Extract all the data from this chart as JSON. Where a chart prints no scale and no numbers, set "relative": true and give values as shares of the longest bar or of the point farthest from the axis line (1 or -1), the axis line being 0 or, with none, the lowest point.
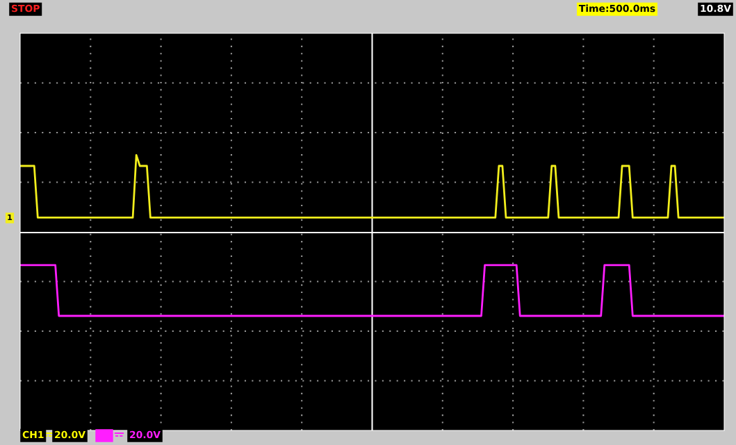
{
  "chart_data": {
    "type": "line",
    "relative": true,
    "grid": true,
    "line_style": "solid",
    "categories": [
      null,
      null,
      null,
      null,
      null,
      null,
      null,
      null,
      null,
      null,
      null,
      null,
      null,
      null,
      null,
      null,
      null,
      null,
      null,
      null,
      null,
      null,
      null,
      null,
      null,
      null,
      null,
      null,
      null,
      null,
      null,
      null,
      null,
      null,
      null,
      null,
      null,
      null,
      null,
      null,
      null,
      null,
      null,
      null,
      null,
      null,
      null,
      null,
      null,
      null,
      null,
      null,
      null,
      null,
      null,
      null,
      null,
      null,
      null,
      null,
      null,
      null,
      null,
      null,
      null,
      null,
      null,
      null,
      null,
      null,
      null,
      null,
      null,
      null,
      null,
      null,
      null,
      null,
      null,
      null,
      null,
      null,
      null,
      null,
      null,
      null,
      null,
      null,
      null,
      null,
      null,
      null,
      null,
      null,
      null,
      null,
      null,
      null,
      null,
      null,
      null,
      null,
      null,
      null,
      null,
      null,
      null,
      null,
      null,
      null,
      null,
      null,
      null,
      null,
      null,
      null,
      null,
      null,
      null,
      null,
      null,
      null,
      null,
      null,
      null,
      null,
      null,
      null,
      null,
      null,
      null,
      null,
      null,
      null,
      null,
      null,
      null,
      null,
      null,
      null,
      null,
      null,
      null,
      null,
      null,
      null,
      null,
      null,
      null,
      null,
      null,
      null,
      null,
      null,
      null,
      null,
      null,
      null,
      null,
      null,
      null,
      null,
      null,
      null,
      null,
      null,
      null,
      null,
      null,
      null,
      null,
      null,
      null,
      null,
      null,
      null,
      null,
      null,
      null,
      null,
      null,
      null,
      null,
      null,
      null,
      null,
      null,
      null,
      null,
      null,
      null,
      null,
      null,
      null,
      null,
      null,
      null,
      null,
      null,
      null,
      null
    ],
    "series": [
      {
        "color": "#f2ee1c",
        "values": [
          0.8,
          0.8,
          0.8,
          0.8,
          0.8,
          0.18,
          0.18,
          0.18,
          0.18,
          0.18,
          0.18,
          0.18,
          0.18,
          0.18,
          0.18,
          0.18,
          0.18,
          0.18,
          0.18,
          0.18,
          0.18,
          0.18,
          0.18,
          0.18,
          0.18,
          0.18,
          0.18,
          0.18,
          0.18,
          0.18,
          0.18,
          0.18,
          0.18,
          0.93,
          0.8,
          0.8,
          0.8,
          0.18,
          0.18,
          0.18,
          0.18,
          0.18,
          0.18,
          0.18,
          0.18,
          0.18,
          0.18,
          0.18,
          0.18,
          0.18,
          0.18,
          0.18,
          0.18,
          0.18,
          0.18,
          0.18,
          0.18,
          0.18,
          0.18,
          0.18,
          0.18,
          0.18,
          0.18,
          0.18,
          0.18,
          0.18,
          0.18,
          0.18,
          0.18,
          0.18,
          0.18,
          0.18,
          0.18,
          0.18,
          0.18,
          0.18,
          0.18,
          0.18,
          0.18,
          0.18,
          0.18,
          0.18,
          0.18,
          0.18,
          0.18,
          0.18,
          0.18,
          0.18,
          0.18,
          0.18,
          0.18,
          0.18,
          0.18,
          0.18,
          0.18,
          0.18,
          0.18,
          0.18,
          0.18,
          0.18,
          0.18,
          0.18,
          0.18,
          0.18,
          0.18,
          0.18,
          0.18,
          0.18,
          0.18,
          0.18,
          0.18,
          0.18,
          0.18,
          0.18,
          0.18,
          0.18,
          0.18,
          0.18,
          0.18,
          0.18,
          0.18,
          0.18,
          0.18,
          0.18,
          0.18,
          0.18,
          0.18,
          0.18,
          0.18,
          0.18,
          0.18,
          0.18,
          0.18,
          0.18,
          0.18,
          0.18,
          0.8,
          0.8,
          0.18,
          0.18,
          0.18,
          0.18,
          0.18,
          0.18,
          0.18,
          0.18,
          0.18,
          0.18,
          0.18,
          0.18,
          0.18,
          0.8,
          0.8,
          0.18,
          0.18,
          0.18,
          0.18,
          0.18,
          0.18,
          0.18,
          0.18,
          0.18,
          0.18,
          0.18,
          0.18,
          0.18,
          0.18,
          0.18,
          0.18,
          0.18,
          0.18,
          0.8,
          0.8,
          0.8,
          0.18,
          0.18,
          0.18,
          0.18,
          0.18,
          0.18,
          0.18,
          0.18,
          0.18,
          0.18,
          0.18,
          0.8,
          0.8,
          0.18,
          0.18,
          0.18,
          0.18,
          0.18,
          0.18,
          0.18,
          0.18,
          0.18,
          0.18,
          0.18,
          0.18,
          0.18,
          0.18
        ]
      },
      {
        "color": "#ff1eff",
        "values": [
          -0.39,
          -0.39,
          -0.39,
          -0.39,
          -0.39,
          -0.39,
          -0.39,
          -0.39,
          -0.39,
          -0.39,
          -0.39,
          -1,
          -1,
          -1,
          -1,
          -1,
          -1,
          -1,
          -1,
          -1,
          -1,
          -1,
          -1,
          -1,
          -1,
          -1,
          -1,
          -1,
          -1,
          -1,
          -1,
          -1,
          -1,
          -1,
          -1,
          -1,
          -1,
          -1,
          -1,
          -1,
          -1,
          -1,
          -1,
          -1,
          -1,
          -1,
          -1,
          -1,
          -1,
          -1,
          -1,
          -1,
          -1,
          -1,
          -1,
          -1,
          -1,
          -1,
          -1,
          -1,
          -1,
          -1,
          -1,
          -1,
          -1,
          -1,
          -1,
          -1,
          -1,
          -1,
          -1,
          -1,
          -1,
          -1,
          -1,
          -1,
          -1,
          -1,
          -1,
          -1,
          -1,
          -1,
          -1,
          -1,
          -1,
          -1,
          -1,
          -1,
          -1,
          -1,
          -1,
          -1,
          -1,
          -1,
          -1,
          -1,
          -1,
          -1,
          -1,
          -1,
          -1,
          -1,
          -1,
          -1,
          -1,
          -1,
          -1,
          -1,
          -1,
          -1,
          -1,
          -1,
          -1,
          -1,
          -1,
          -1,
          -1,
          -1,
          -1,
          -1,
          -1,
          -1,
          -1,
          -1,
          -1,
          -1,
          -1,
          -1,
          -1,
          -1,
          -1,
          -1,
          -0.39,
          -0.39,
          -0.39,
          -0.39,
          -0.39,
          -0.39,
          -0.39,
          -0.39,
          -0.39,
          -0.39,
          -1,
          -1,
          -1,
          -1,
          -1,
          -1,
          -1,
          -1,
          -1,
          -1,
          -1,
          -1,
          -1,
          -1,
          -1,
          -1,
          -1,
          -1,
          -1,
          -1,
          -1,
          -1,
          -1,
          -1,
          -0.39,
          -0.39,
          -0.39,
          -0.39,
          -0.39,
          -0.39,
          -0.39,
          -0.39,
          -1,
          -1,
          -1,
          -1,
          -1,
          -1,
          -1,
          -1,
          -1,
          -1,
          -1,
          -1,
          -1,
          -1,
          -1,
          -1,
          -1,
          -1,
          -1,
          -1,
          -1,
          -1,
          -1,
          -1,
          -1,
          -1,
          -1
        ]
      }
    ],
    "annotations": [
      "STOP",
      "Time:500.0ms",
      "10.8V",
      "CH1",
      "20.0V",
      "20.0V",
      "1"
    ]
  }
}
